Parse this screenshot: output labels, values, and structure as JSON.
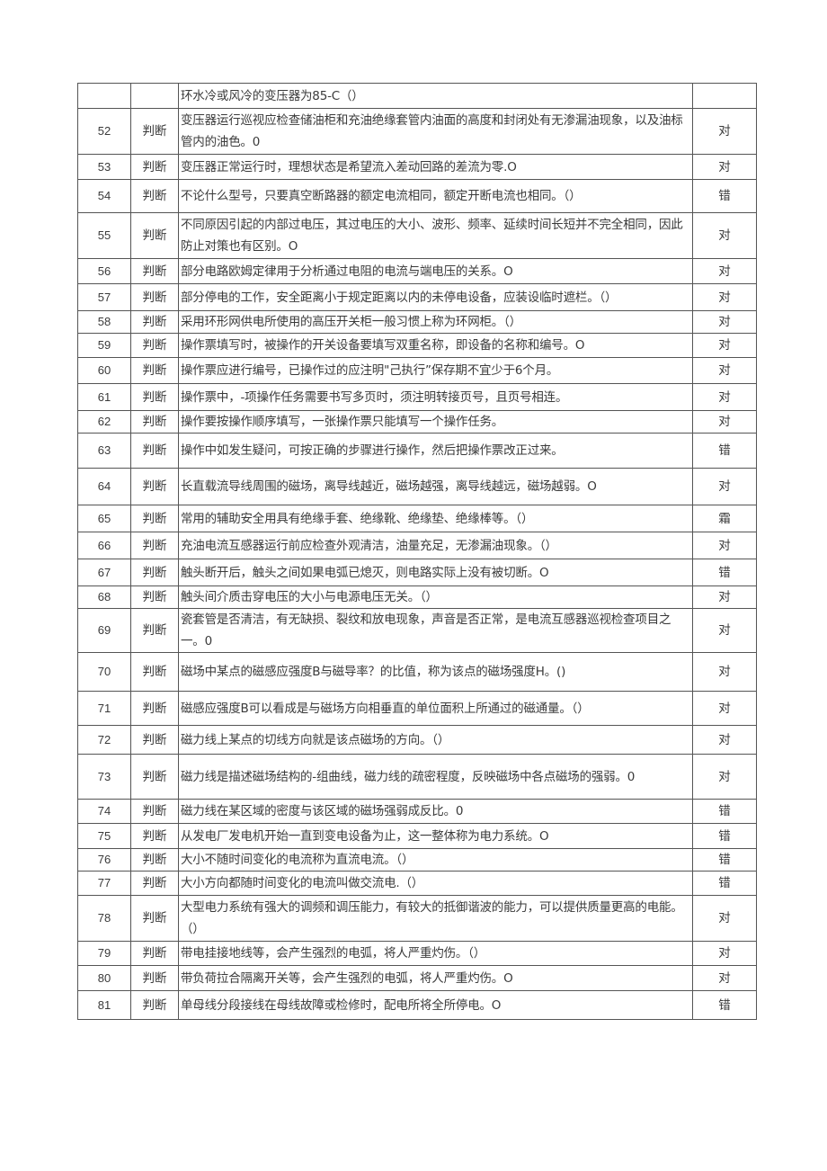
{
  "rows": [
    {
      "num": "",
      "type": "",
      "question": "环水冷或风冷的变压器为85-C（）",
      "answer": ""
    },
    {
      "num": "52",
      "type": "判断",
      "question": "变压器运行巡视应检查储油柜和充油绝缘套管内油面的高度和封闭处有无渗漏油现象，以及油标管内的油色。0",
      "answer": "对"
    },
    {
      "num": "53",
      "type": "判断",
      "question": "变压器正常运行时，理想状态是希望流入差动回路的差流为零.O",
      "answer": "对"
    },
    {
      "num": "54",
      "type": "判断",
      "question": "不论什么型号，只要真空断路器的额定电流相同，额定开断电流也相同。（）",
      "answer": "错"
    },
    {
      "num": "55",
      "type": "判断",
      "question": "不同原因引起的内部过电压，其过电压的大小、波形、频率、延续时间长短并不完全相同，因此防止对策也有区别。O",
      "answer": "对"
    },
    {
      "num": "56",
      "type": "判断",
      "question": "部分电路欧姆定律用于分析通过电阻的电流与端电压的关系。O",
      "answer": "对"
    },
    {
      "num": "57",
      "type": "判断",
      "question": "部分停电的工作，安全距离小于规定距离以内的未停电设备，应装设临时遮栏。（）",
      "answer": "对"
    },
    {
      "num": "58",
      "type": "判断",
      "question": "采用环形网供电所使用的高压开关柜一般习惯上称为环网柜。（）",
      "answer": "对"
    },
    {
      "num": "59",
      "type": "判断",
      "question": "操作票填写时，被操作的开关设备要填写双重名称，即设备的名称和编号。O",
      "answer": "对"
    },
    {
      "num": "60",
      "type": "判断",
      "question": "操作票应进行编号，已操作过的应注明\"己执行”保存期不宜少于6个月。",
      "answer": "对"
    },
    {
      "num": "61",
      "type": "判断",
      "question": "操作票中，-项操作任务需要书写多页时，须注明转接页号，且页号相连。",
      "answer": "对"
    },
    {
      "num": "62",
      "type": "判断",
      "question": "操作要按操作顺序填写，一张操作票只能填写一个操作任务。",
      "answer": "对"
    },
    {
      "num": "63",
      "type": "判断",
      "question": "操作中如发生疑问，可按正确的步骤进行操作，然后把操作票改正过来。",
      "answer": "错"
    },
    {
      "num": "64",
      "type": "判断",
      "question": "长直载流导线周围的磁场，离导线越近，磁场越强，离导线越远，磁场越弱。O",
      "answer": "对"
    },
    {
      "num": "65",
      "type": "判断",
      "question": "常用的辅助安全用具有绝缘手套、绝缘靴、绝缘垫、绝缘棒等。（）",
      "answer": "霜"
    },
    {
      "num": "66",
      "type": "判断",
      "question": "充油电流互感器运行前应检查外观清洁，油量充足，无渗漏油现象。（）",
      "answer": "对"
    },
    {
      "num": "67",
      "type": "判断",
      "question": "触头断开后，触头之间如果电弧已熄灭，则电路实际上没有被切断。O",
      "answer": "错"
    },
    {
      "num": "68",
      "type": "判断",
      "question": "触头间介质击穿电压的大小与电源电压无关。（）",
      "answer": "对"
    },
    {
      "num": "69",
      "type": "判断",
      "question": "瓷套管是否清洁，有无缺损、裂纹和放电现象，声音是否正常，是电流互感器巡视检查项目之一。0",
      "answer": "对"
    },
    {
      "num": "70",
      "type": "判断",
      "question": "磁场中某点的磁感应强度B与磁导率？的比值，称为该点的磁场强度H。()",
      "answer": "对"
    },
    {
      "num": "71",
      "type": "判断",
      "question": "磁感应强度B可以看成是与磁场方向相垂直的单位面积上所通过的磁通量。（）",
      "answer": "对"
    },
    {
      "num": "72",
      "type": "判断",
      "question": "磁力线上某点的切线方向就是该点磁场的方向。（）",
      "answer": "对"
    },
    {
      "num": "73",
      "type": "判断",
      "question": "磁力线是描述磁场结构的-组曲线，磁力线的疏密程度，反映磁场中各点磁场的强弱。0",
      "answer": "对"
    },
    {
      "num": "74",
      "type": "判断",
      "question": "磁力线在某区域的密度与该区域的磁场强弱成反比。0",
      "answer": "错"
    },
    {
      "num": "75",
      "type": "判断",
      "question": "从发电厂发电机开始一直到变电设备为止，这一整体称为电力系统。O",
      "answer": "错"
    },
    {
      "num": "76",
      "type": "判断",
      "question": "大小不随时间变化的电流称为直流电流。（）",
      "answer": "错"
    },
    {
      "num": "77",
      "type": "判断",
      "question": "大小方向都随时间变化的电流叫做交流电.（）",
      "answer": "错"
    },
    {
      "num": "78",
      "type": "判断",
      "question": "大型电力系统有强大的调频和调压能力，有较大的抵御谐波的能力，可以提供质量更高的电能。（）",
      "answer": "对"
    },
    {
      "num": "79",
      "type": "判断",
      "question": "带电挂接地线等，会产生强烈的电弧，将人严重灼伤。（）",
      "answer": "对"
    },
    {
      "num": "80",
      "type": "判断",
      "question": "带负荷拉合隔离开关等，会产生强烈的电弧，将人严重灼伤。O",
      "answer": "对"
    },
    {
      "num": "81",
      "type": "判断",
      "question": "单母线分段接线在母线故障或检修时，配电所将全所停电。O",
      "answer": "错"
    }
  ]
}
